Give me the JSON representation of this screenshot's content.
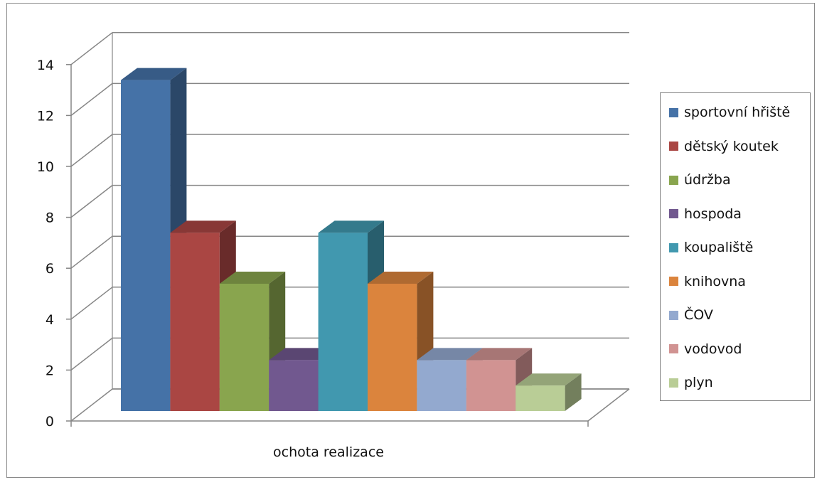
{
  "chart_data": {
    "type": "bar",
    "style": "3d-clustered-column",
    "categories": [
      "ochota realizace"
    ],
    "series": [
      {
        "name": "sportovní hřiště",
        "values": [
          13
        ],
        "color": "#4572A7"
      },
      {
        "name": "dětský koutek",
        "values": [
          7
        ],
        "color": "#AA4643"
      },
      {
        "name": "údržba",
        "values": [
          5
        ],
        "color": "#89A54E"
      },
      {
        "name": "hospoda",
        "values": [
          2
        ],
        "color": "#71588F"
      },
      {
        "name": "koupaliště",
        "values": [
          7
        ],
        "color": "#4198AF"
      },
      {
        "name": "knihovna",
        "values": [
          5
        ],
        "color": "#DB843D"
      },
      {
        "name": "ČOV",
        "values": [
          2
        ],
        "color": "#93A9CF"
      },
      {
        "name": "vodovod",
        "values": [
          2
        ],
        "color": "#D19392"
      },
      {
        "name": "plyn",
        "values": [
          1
        ],
        "color": "#B9CD96"
      }
    ],
    "ylim": [
      0,
      14
    ],
    "yticks": [
      "0",
      "2",
      "4",
      "6",
      "8",
      "10",
      "12",
      "14"
    ],
    "title": "",
    "xlabel": "",
    "ylabel": "",
    "grid": true,
    "legend_position": "right"
  }
}
